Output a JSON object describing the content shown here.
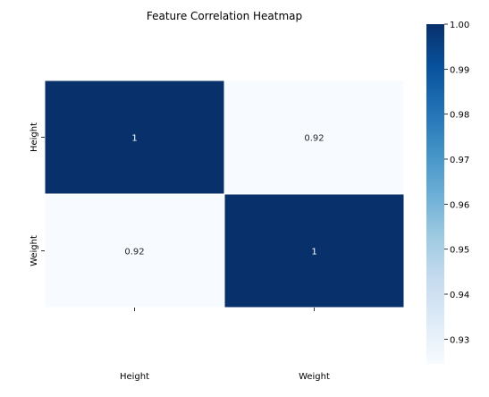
{
  "chart_data": {
    "type": "heatmap",
    "title": "Feature Correlation Heatmap",
    "xlabel": "",
    "ylabel": "",
    "x_categories": [
      "Height",
      "Weight"
    ],
    "y_categories": [
      "Height",
      "Weight"
    ],
    "values": [
      [
        1,
        0.92
      ],
      [
        0.92,
        1
      ]
    ],
    "cell_labels": [
      [
        "1",
        "0.92"
      ],
      [
        "0.92",
        "1"
      ]
    ],
    "colormap": "Blues",
    "color_min": "#f7fbff",
    "color_max": "#08306b",
    "colorbar": {
      "range": [
        0.9245,
        1.0
      ],
      "ticks": [
        0.93,
        0.94,
        0.95,
        0.96,
        0.97,
        0.98,
        0.99,
        1.0
      ],
      "tick_labels": [
        "0.93",
        "0.94",
        "0.95",
        "0.96",
        "0.97",
        "0.98",
        "0.99",
        "1.00"
      ],
      "placement": "right"
    },
    "grid": false
  }
}
